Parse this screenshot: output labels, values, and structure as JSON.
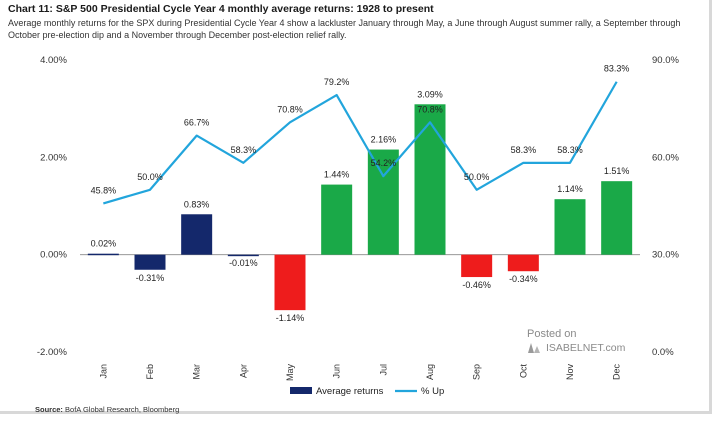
{
  "title": "Chart 11: S&P 500 Presidential Cycle Year 4 monthly average returns: 1928 to present",
  "subtitle": "Average monthly returns for the SPX during Presidential Cycle Year 4 show a lackluster January through May, a June through August summer rally, a September through October pre-election dip and a November through December post-election relief rally.",
  "source_label": "Source:",
  "source_text": "BofA Global Research, Bloomberg",
  "watermark": {
    "line1": "Posted on",
    "line2": "ISABELNET.com"
  },
  "colors": {
    "positive": "#1aa948",
    "negative": "#ee1c1c",
    "highlight": "#14286b",
    "line": "#22a5dc"
  },
  "chart_data": {
    "type": "bar",
    "categories": [
      "Jan",
      "Feb",
      "Mar",
      "Apr",
      "May",
      "Jun",
      "Jul",
      "Aug",
      "Sep",
      "Oct",
      "Nov",
      "Dec"
    ],
    "series": [
      {
        "name": "Average returns",
        "type": "bar",
        "axis": "left",
        "values": [
          0.02,
          -0.31,
          0.83,
          -0.01,
          -1.14,
          1.44,
          2.16,
          3.09,
          -0.46,
          -0.34,
          1.14,
          1.51
        ],
        "labels": [
          "0.02%",
          "-0.31%",
          "0.83%",
          "-0.01%",
          "-1.14%",
          "1.44%",
          "2.16%",
          "3.09%",
          "-0.46%",
          "-0.34%",
          "1.14%",
          "1.51%"
        ],
        "bar_colors": [
          "highlight",
          "highlight",
          "highlight",
          "highlight",
          "negative",
          "positive",
          "positive",
          "positive",
          "negative",
          "negative",
          "positive",
          "positive"
        ]
      },
      {
        "name": "% Up",
        "type": "line",
        "axis": "right",
        "values": [
          45.8,
          50.0,
          66.7,
          58.3,
          70.8,
          79.2,
          54.2,
          70.8,
          50.0,
          58.3,
          58.3,
          83.3
        ],
        "labels": [
          "45.8%",
          "50.0%",
          "66.7%",
          "58.3%",
          "70.8%",
          "79.2%",
          "54.2%",
          "70.8%",
          "50.0%",
          "58.3%",
          "58.3%",
          "83.3%"
        ]
      }
    ],
    "y_left": {
      "lim": [
        -2,
        4
      ],
      "ticks": [
        "-2.00%",
        "0.00%",
        "2.00%",
        "4.00%"
      ]
    },
    "y_right": {
      "lim": [
        0,
        90
      ],
      "ticks": [
        "0.0%",
        "30.0%",
        "60.0%",
        "90.0%"
      ]
    },
    "legend": {
      "position": "bottom"
    },
    "grid": false
  }
}
